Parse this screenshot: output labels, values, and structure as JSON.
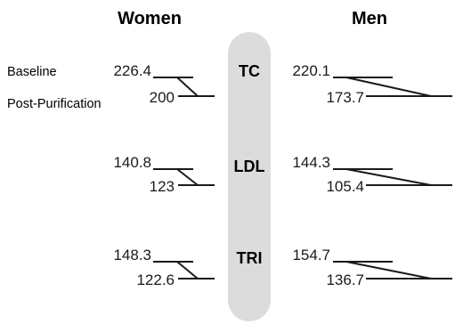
{
  "chart_data": {
    "type": "slope",
    "groups": [
      "Women",
      "Men"
    ],
    "metrics": [
      "TC",
      "LDL",
      "TRI"
    ],
    "timepoints": [
      "Baseline",
      "Post-Purification"
    ],
    "series": [
      {
        "name": "Women",
        "metrics": [
          {
            "metric": "TC",
            "baseline": 226.4,
            "post": 200
          },
          {
            "metric": "LDL",
            "baseline": 140.8,
            "post": 123
          },
          {
            "metric": "TRI",
            "baseline": 148.3,
            "post": 122.6
          }
        ]
      },
      {
        "name": "Men",
        "metrics": [
          {
            "metric": "TC",
            "baseline": 220.1,
            "post": 173.7
          },
          {
            "metric": "LDL",
            "baseline": 144.3,
            "post": 105.4
          },
          {
            "metric": "TRI",
            "baseline": 154.7,
            "post": 136.7
          }
        ]
      }
    ],
    "value_labels": {
      "women": [
        "226.4",
        "200",
        "140.8",
        "123",
        "148.3",
        "122.6"
      ],
      "men": [
        "220.1",
        "173.7",
        "144.3",
        "105.4",
        "154.7",
        "136.7"
      ]
    }
  },
  "colors": {
    "center_band": "#dcdcdc",
    "lines": "#1a1a1a",
    "text": "#1a1a1a"
  }
}
